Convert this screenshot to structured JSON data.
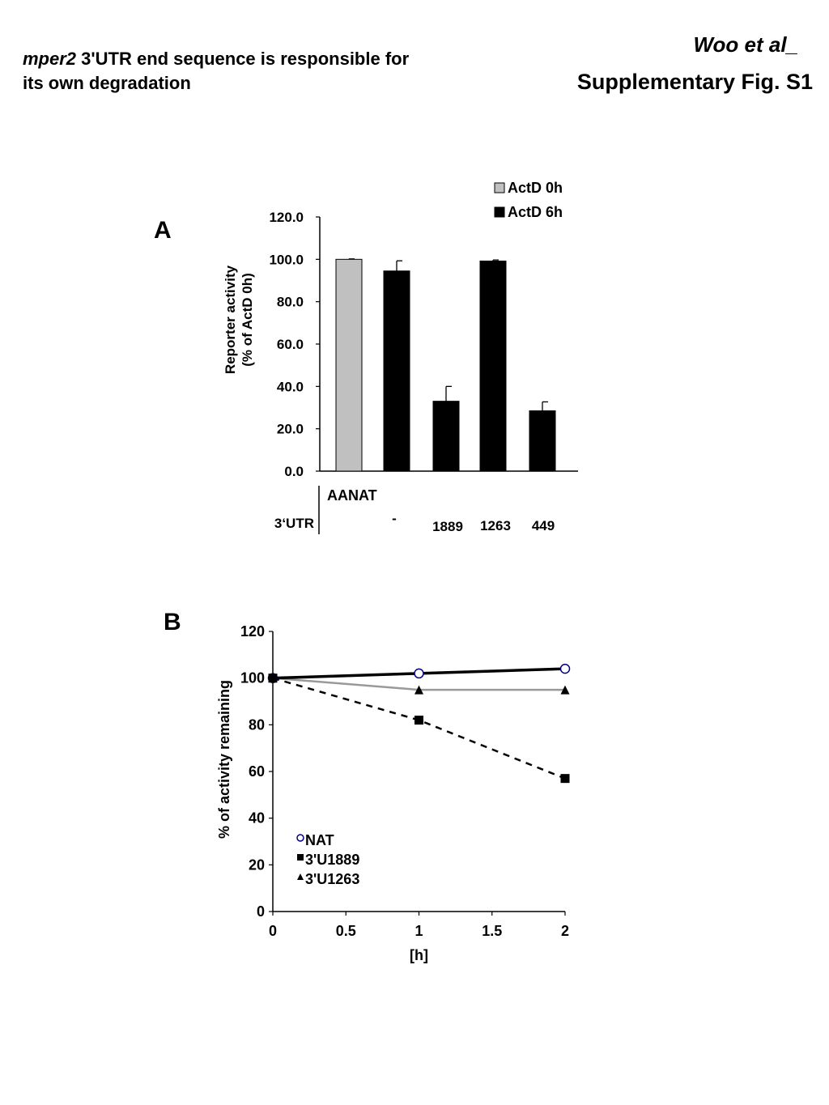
{
  "header": {
    "title_italic": "mper2",
    "title_rest": " 3'UTR end sequence is responsible for",
    "title_line2": "its own degradation",
    "author": "Woo et al_",
    "figure_label": "Supplementary Fig. S1"
  },
  "panels": {
    "a": "A",
    "b": "B"
  },
  "colors": {
    "actd0h": "#c0c0c0",
    "actd6h": "#000000",
    "nat": "#000080",
    "line_grey": "#999999"
  },
  "chart_data": [
    {
      "type": "bar",
      "panel": "A",
      "ylabel_line1": "Reporter activity",
      "ylabel_line2": "(% of ActD 0h)",
      "ylim": [
        0,
        120
      ],
      "yticks": [
        "0.0",
        "20.0",
        "40.0",
        "60.0",
        "80.0",
        "100.0",
        "120.0"
      ],
      "legend_position": "top-right",
      "series": [
        {
          "name": "ActD 0h",
          "color": "#c0c0c0"
        },
        {
          "name": "ActD 6h",
          "color": "#000000"
        }
      ],
      "bars": [
        {
          "series": "ActD 0h",
          "value": 100.0,
          "error": 0.2
        },
        {
          "series": "ActD 6h",
          "value": 94.5,
          "error": 4.8
        },
        {
          "series": "ActD 6h",
          "value": 33.0,
          "error": 7.0
        },
        {
          "series": "ActD 6h",
          "value": 99.2,
          "error": 0.5
        },
        {
          "series": "ActD 6h",
          "value": 28.5,
          "error": 4.2
        }
      ],
      "table": {
        "row1_label": "",
        "row1_value": "AANAT",
        "row2_label": "3‘UTR",
        "row2_values": [
          "",
          "-",
          "1889",
          "1263",
          "449"
        ]
      }
    },
    {
      "type": "scatter",
      "panel": "B",
      "xlabel": "[h]",
      "ylabel": "% of activity remaining",
      "xlim": [
        0,
        2
      ],
      "ylim": [
        0,
        120
      ],
      "xticks": [
        "0",
        "0.5",
        "1",
        "1.5",
        "2"
      ],
      "yticks": [
        "0",
        "20",
        "40",
        "60",
        "80",
        "100",
        "120"
      ],
      "legend_position": "bottom-left",
      "series": [
        {
          "name": "NAT",
          "marker": "circle-open",
          "line": "solid-thick",
          "x": [
            0,
            1,
            2
          ],
          "y": [
            100,
            102,
            104
          ]
        },
        {
          "name": "3'U1889",
          "marker": "square",
          "line": "dashed",
          "x": [
            0,
            1,
            2
          ],
          "y": [
            100,
            82,
            57
          ]
        },
        {
          "name": "3'U1263",
          "marker": "triangle",
          "line": "solid-grey",
          "x": [
            0,
            1,
            2
          ],
          "y": [
            100,
            95,
            95
          ]
        }
      ]
    }
  ]
}
